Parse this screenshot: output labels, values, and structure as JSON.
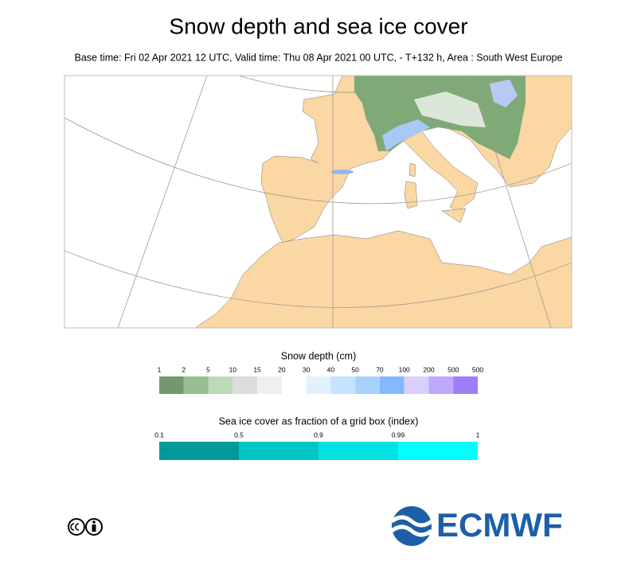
{
  "title": "Snow depth and sea ice cover",
  "subtitle": "Base time: Fri 02 Apr 2021 12 UTC, Valid time: Thu 08 Apr 2021 00 UTC, - T+132 h, Area : South West Europe",
  "snow_legend": {
    "title": "Snow depth (cm)",
    "labels": [
      "1",
      "2",
      "5",
      "10",
      "15",
      "20",
      "30",
      "40",
      "50",
      "70",
      "100",
      "200",
      "500",
      "500"
    ],
    "colors": [
      "#74976f",
      "#98bd93",
      "#bcdbb7",
      "#dcdcdc",
      "#efefef",
      "#ffffff",
      "#e3f1fd",
      "#c7e2fd",
      "#a8d1fc",
      "#84b9fb",
      "#d9cffb",
      "#bca9fa",
      "#9b7ff7"
    ]
  },
  "ice_legend": {
    "title": "Sea ice cover as fraction of a grid box (index)",
    "labels": [
      "0.1",
      "0.5",
      "0.9",
      "0.99",
      "1"
    ],
    "colors": [
      "#009a9a",
      "#00c5c5",
      "#00e2e2",
      "#00ffff"
    ]
  },
  "logo": "ECMWF"
}
